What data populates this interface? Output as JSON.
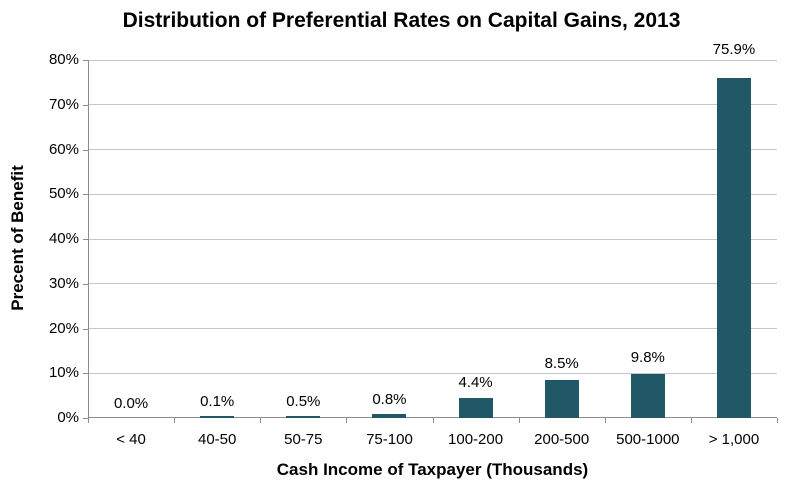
{
  "chart_data": {
    "type": "bar",
    "title": "Distribution of Preferential Rates on Capital Gains, 2013",
    "xlabel": "Cash Income of Taxpayer (Thousands)",
    "ylabel": "Precent of Benefit",
    "categories": [
      "< 40",
      "40-50",
      "50-75",
      "75-100",
      "100-200",
      "200-500",
      "500-1000",
      "> 1,000"
    ],
    "values": [
      0.0,
      0.1,
      0.5,
      0.8,
      4.4,
      8.5,
      9.8,
      75.9
    ],
    "value_labels": [
      "0.0%",
      "0.1%",
      "0.5%",
      "0.8%",
      "4.4%",
      "8.5%",
      "9.8%",
      "75.9%"
    ],
    "ylim": [
      0,
      80
    ],
    "ytick_step": 10,
    "ytick_labels": [
      "0%",
      "10%",
      "20%",
      "30%",
      "40%",
      "50%",
      "60%",
      "70%",
      "80%"
    ],
    "grid": true,
    "legend_position": "none",
    "colors": {
      "bar": "#205867",
      "gridline": "#C6C6C6",
      "axis": "#8C8C8C",
      "text": "#000000"
    }
  }
}
